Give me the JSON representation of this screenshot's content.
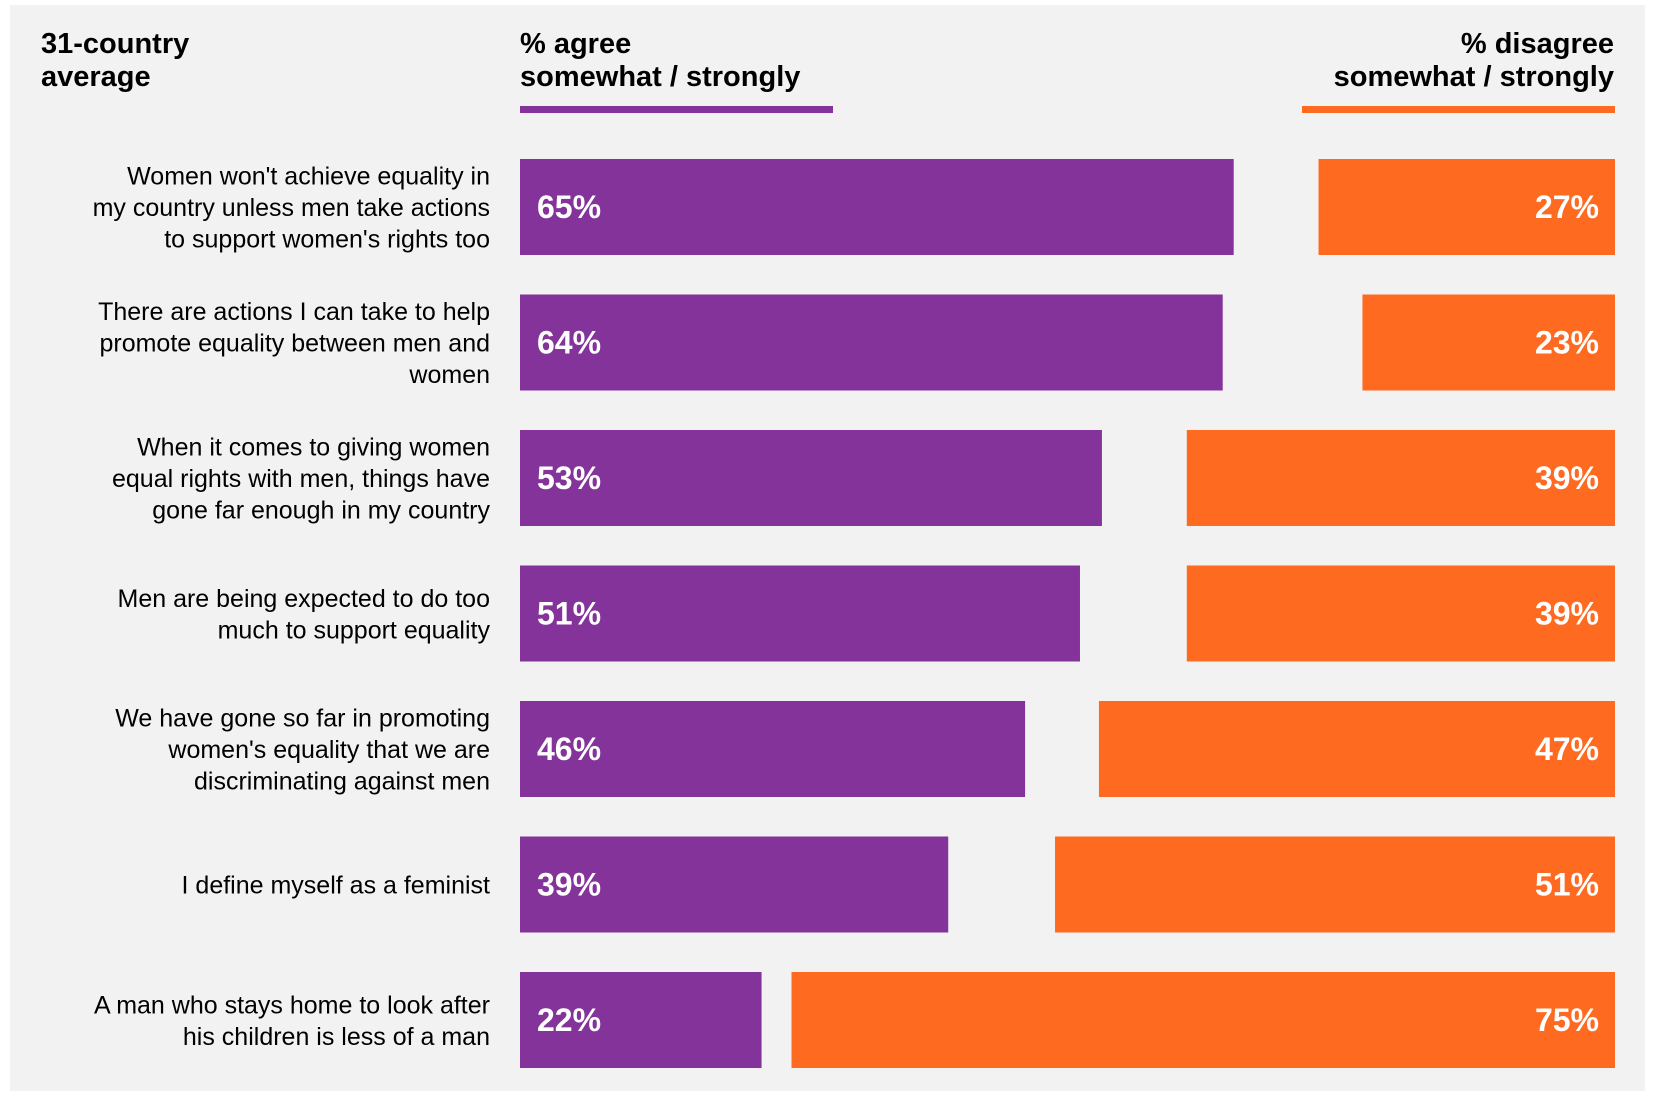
{
  "chart_data": {
    "type": "bar",
    "title": "",
    "headers": {
      "left": [
        "31-country",
        "average"
      ],
      "agree": [
        "% agree",
        "somewhat / strongly"
      ],
      "disagree": [
        "% disagree",
        "somewhat / strongly"
      ]
    },
    "categories": [
      [
        "Women won't achieve equality in",
        "my country unless men take actions",
        "to support women's rights too"
      ],
      [
        "There are actions I can take to help",
        "promote equality between men and",
        "women"
      ],
      [
        "When it comes to giving women",
        "equal rights with men, things have",
        "gone far enough in my country"
      ],
      [
        "Men are being expected to do too",
        "much to support equality"
      ],
      [
        "We have gone so far in promoting",
        "women's equality that we are",
        "discriminating against men"
      ],
      [
        "I define myself as a feminist"
      ],
      [
        "A man who stays home to look after",
        "his children is less of a man"
      ]
    ],
    "series": [
      {
        "name": "% agree somewhat / strongly",
        "values": [
          65,
          64,
          53,
          51,
          46,
          39,
          22
        ],
        "labels": [
          "65%",
          "64%",
          "53%",
          "51%",
          "46%",
          "39%",
          "22%"
        ]
      },
      {
        "name": "% disagree somewhat / strongly",
        "values": [
          27,
          23,
          39,
          39,
          47,
          51,
          75
        ],
        "labels": [
          "27%",
          "23%",
          "39%",
          "39%",
          "47%",
          "51%",
          "75%"
        ]
      }
    ],
    "colors": {
      "agree": "#833399",
      "disagree": "#ff6a21",
      "background": "#f2f2f2"
    },
    "legend": "top",
    "grid": false
  }
}
